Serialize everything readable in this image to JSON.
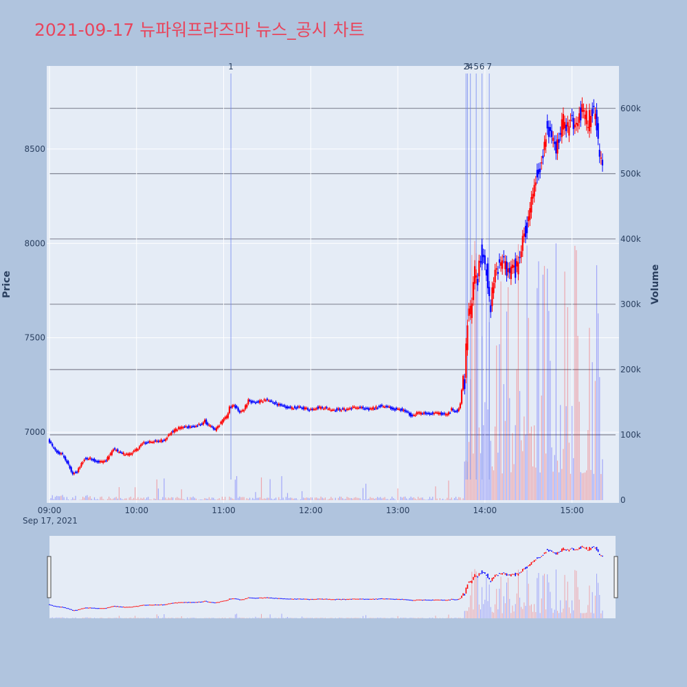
{
  "title": "2021-09-17 뉴파워프라즈마 뉴스_공시 차트",
  "colors": {
    "up": "#ff0000",
    "down": "#0000ff",
    "background": "#b0c4de",
    "plot_bg": "#e5ecf6",
    "title": "#e8455c"
  },
  "chart_data": {
    "type": "candlestick",
    "y_title": "Price",
    "y2_title": "Volume",
    "x_ticks": [
      "09:00",
      "10:00",
      "11:00",
      "12:00",
      "13:00",
      "14:00",
      "15:00"
    ],
    "x_date_label": "Sep 17, 2021",
    "x_range": [
      "09:00",
      "15:30"
    ],
    "price_ticks": [
      "7000",
      "7500",
      "8000",
      "8500"
    ],
    "price_range": [
      6640,
      8940
    ],
    "volume_ticks": [
      "0",
      "100k",
      "200k",
      "300k",
      "400k",
      "500k",
      "600k"
    ],
    "volume_range": [
      0,
      665000
    ],
    "news_markers": [
      {
        "label": "1",
        "time": "11:05"
      },
      {
        "label": "2",
        "time": "13:47"
      },
      {
        "label": "3",
        "time": "13:48"
      },
      {
        "label": "4",
        "time": "13:50"
      },
      {
        "label": "5",
        "time": "13:54"
      },
      {
        "label": "6",
        "time": "13:58"
      },
      {
        "label": "7",
        "time": "14:03"
      }
    ],
    "price_path": [
      [
        "09:00",
        6960
      ],
      [
        "09:05",
        6900
      ],
      [
        "09:10",
        6880
      ],
      [
        "09:13",
        6840
      ],
      [
        "09:17",
        6780
      ],
      [
        "09:20",
        6790
      ],
      [
        "09:25",
        6860
      ],
      [
        "09:30",
        6860
      ],
      [
        "09:35",
        6840
      ],
      [
        "09:40",
        6850
      ],
      [
        "09:45",
        6910
      ],
      [
        "09:50",
        6890
      ],
      [
        "09:55",
        6880
      ],
      [
        "10:00",
        6900
      ],
      [
        "10:05",
        6940
      ],
      [
        "10:10",
        6950
      ],
      [
        "10:15",
        6950
      ],
      [
        "10:20",
        6960
      ],
      [
        "10:25",
        7000
      ],
      [
        "10:30",
        7020
      ],
      [
        "10:35",
        7030
      ],
      [
        "10:40",
        7030
      ],
      [
        "10:45",
        7040
      ],
      [
        "10:48",
        7060
      ],
      [
        "10:50",
        7040
      ],
      [
        "10:55",
        7010
      ],
      [
        "11:00",
        7060
      ],
      [
        "11:03",
        7080
      ],
      [
        "11:05",
        7130
      ],
      [
        "11:08",
        7140
      ],
      [
        "11:12",
        7110
      ],
      [
        "11:15",
        7120
      ],
      [
        "11:18",
        7170
      ],
      [
        "11:20",
        7160
      ],
      [
        "11:25",
        7160
      ],
      [
        "11:30",
        7170
      ],
      [
        "11:35",
        7160
      ],
      [
        "11:40",
        7140
      ],
      [
        "11:45",
        7130
      ],
      [
        "11:50",
        7130
      ],
      [
        "11:55",
        7130
      ],
      [
        "12:00",
        7120
      ],
      [
        "12:05",
        7130
      ],
      [
        "12:10",
        7130
      ],
      [
        "12:15",
        7120
      ],
      [
        "12:20",
        7120
      ],
      [
        "12:25",
        7120
      ],
      [
        "12:30",
        7130
      ],
      [
        "12:35",
        7130
      ],
      [
        "12:40",
        7120
      ],
      [
        "12:45",
        7130
      ],
      [
        "12:50",
        7140
      ],
      [
        "12:55",
        7130
      ],
      [
        "13:00",
        7120
      ],
      [
        "13:05",
        7120
      ],
      [
        "13:10",
        7090
      ],
      [
        "13:15",
        7100
      ],
      [
        "13:20",
        7100
      ],
      [
        "13:25",
        7100
      ],
      [
        "13:30",
        7100
      ],
      [
        "13:35",
        7090
      ],
      [
        "13:38",
        7120
      ],
      [
        "13:42",
        7110
      ],
      [
        "13:44",
        7150
      ],
      [
        "13:46",
        7300
      ],
      [
        "13:47",
        7250
      ],
      [
        "13:48",
        7450
      ],
      [
        "13:49",
        7600
      ],
      [
        "13:51",
        7650
      ],
      [
        "13:53",
        7750
      ],
      [
        "13:54",
        7850
      ],
      [
        "13:56",
        7780
      ],
      [
        "13:58",
        7950
      ],
      [
        "14:00",
        7900
      ],
      [
        "14:02",
        7850
      ],
      [
        "14:03",
        7750
      ],
      [
        "14:05",
        7650
      ],
      [
        "14:07",
        7800
      ],
      [
        "14:10",
        7870
      ],
      [
        "14:12",
        7900
      ],
      [
        "14:15",
        7880
      ],
      [
        "14:18",
        7850
      ],
      [
        "14:20",
        7900
      ],
      [
        "14:22",
        7860
      ],
      [
        "14:25",
        7900
      ],
      [
        "14:27",
        8050
      ],
      [
        "14:30",
        8080
      ],
      [
        "14:33",
        8200
      ],
      [
        "14:35",
        8350
      ],
      [
        "14:38",
        8380
      ],
      [
        "14:40",
        8420
      ],
      [
        "14:43",
        8600
      ],
      [
        "14:46",
        8560
      ],
      [
        "14:49",
        8500
      ],
      [
        "14:52",
        8580
      ],
      [
        "14:55",
        8650
      ],
      [
        "14:58",
        8620
      ],
      [
        "15:00",
        8680
      ],
      [
        "15:03",
        8620
      ],
      [
        "15:06",
        8680
      ],
      [
        "15:09",
        8700
      ],
      [
        "15:12",
        8640
      ],
      [
        "15:15",
        8720
      ],
      [
        "15:18",
        8640
      ],
      [
        "15:20",
        8450
      ],
      [
        "15:21",
        8420
      ],
      [
        "15:22",
        8450
      ]
    ]
  }
}
